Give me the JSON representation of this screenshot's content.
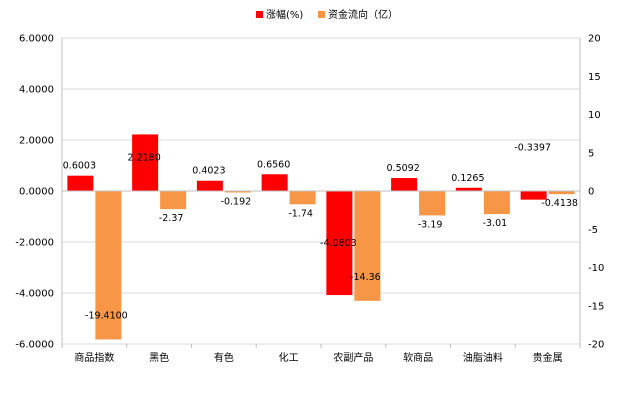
{
  "chart_data": {
    "type": "bar",
    "categories": [
      "商品指数",
      "黑色",
      "有色",
      "化工",
      "农副产品",
      "软商品",
      "油脂油料",
      "贵金属"
    ],
    "series": [
      {
        "name": "涨幅(%)",
        "axis": "left",
        "color": "#ff0000",
        "values": [
          0.6003,
          2.218,
          0.4023,
          0.656,
          -4.0803,
          0.5092,
          0.1265,
          -0.3397
        ],
        "labels": [
          "0.6003",
          "2.2180",
          "0.4023",
          "0.6560",
          "-4.0803",
          "0.5092",
          "0.1265",
          "-0.3397"
        ]
      },
      {
        "name": "资金流向（亿）",
        "axis": "right",
        "color": "#f79646",
        "values": [
          -19.41,
          -2.37,
          -0.192,
          -1.74,
          -14.36,
          -3.19,
          -3.01,
          -0.4138
        ],
        "labels": [
          "-19.4100",
          "-2.37",
          "-0.192",
          "-1.74",
          "-14.36",
          "-3.19",
          "-3.01",
          "-0.4138"
        ]
      }
    ],
    "y_left": {
      "ylim": [
        -6,
        6
      ],
      "ticks": [
        6,
        4,
        2,
        0,
        -2,
        -4,
        -6
      ],
      "tick_labels": [
        "6.0000",
        "4.0000",
        "2.0000",
        "0.0000",
        "-2.0000",
        "-4.0000",
        "-6.0000"
      ]
    },
    "y_right": {
      "ylim": [
        -20,
        20
      ],
      "ticks": [
        20,
        15,
        10,
        5,
        0,
        -5,
        -10,
        -15,
        -20
      ],
      "tick_labels": [
        "20",
        "15",
        "10",
        "5",
        "0",
        "-5",
        "-10",
        "-15",
        "-20"
      ]
    },
    "legend_position": "top",
    "grid": true
  }
}
